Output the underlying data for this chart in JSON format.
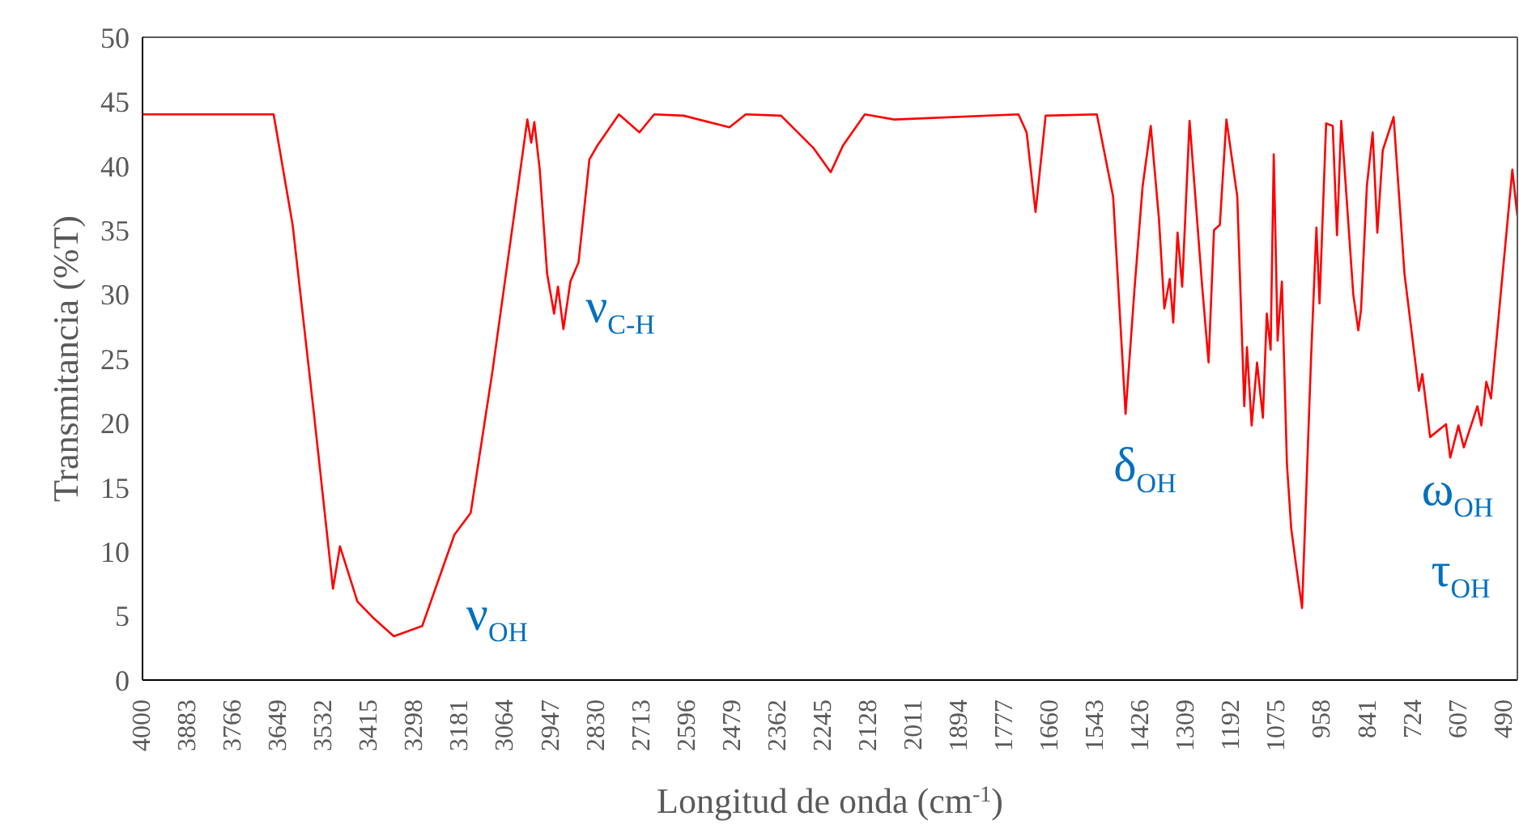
{
  "chart_data": {
    "type": "line",
    "xlabel": "Longitud de onda (cm$^{-1}$)",
    "ylabel": "Transmitancia (%T)",
    "x": [
      4000,
      3662,
      3613,
      3558,
      3509,
      3491,
      3446,
      3404,
      3352,
      3279,
      3196,
      3154,
      3098,
      3008,
      2998,
      2990,
      2976,
      2957,
      2939,
      2929,
      2915,
      2897,
      2876,
      2848,
      2827,
      2772,
      2719,
      2681,
      2605,
      2487,
      2445,
      2354,
      2271,
      2226,
      2194,
      2138,
      2062,
      1742,
      1721,
      1698,
      1672,
      1540,
      1498,
      1466,
      1443,
      1422,
      1401,
      1380,
      1366,
      1352,
      1343,
      1332,
      1320,
      1301,
      1269,
      1252,
      1238,
      1223,
      1206,
      1178,
      1160,
      1153,
      1141,
      1127,
      1112,
      1102,
      1092,
      1084,
      1074,
      1063,
      1050,
      1039,
      1025,
      1011,
      988,
      974,
      966,
      949,
      932,
      921,
      910,
      879,
      866,
      859,
      844,
      829,
      817,
      803,
      775,
      747,
      710,
      701,
      681,
      640,
      629,
      608,
      594,
      559,
      549,
      536,
      524,
      469,
      456
    ],
    "series": [
      {
        "color": "#ff0000",
        "values": [
          44.0,
          44.0,
          35.4,
          20.7,
          7.1,
          10.4,
          6.1,
          4.8,
          3.4,
          4.2,
          11.3,
          13.0,
          24.0,
          43.6,
          41.8,
          43.4,
          39.7,
          31.6,
          28.5,
          30.6,
          27.3,
          31.0,
          32.5,
          40.5,
          41.6,
          44.0,
          42.6,
          44.0,
          43.9,
          43.0,
          44.0,
          43.9,
          41.4,
          39.5,
          41.6,
          44.0,
          43.6,
          44.0,
          42.6,
          36.4,
          43.9,
          44.0,
          37.6,
          20.7,
          30.4,
          38.4,
          43.1,
          35.9,
          28.9,
          31.2,
          27.8,
          34.8,
          30.6,
          43.5,
          30.8,
          24.7,
          35.0,
          35.4,
          43.6,
          37.6,
          21.3,
          25.9,
          19.8,
          24.7,
          20.4,
          28.5,
          25.7,
          40.9,
          26.4,
          31.0,
          16.8,
          11.8,
          8.6,
          5.6,
          24.9,
          35.2,
          29.3,
          43.3,
          43.1,
          34.6,
          43.5,
          30.0,
          27.2,
          28.8,
          38.4,
          42.6,
          34.8,
          41.2,
          43.8,
          31.6,
          22.5,
          23.8,
          18.9,
          19.9,
          17.3,
          19.8,
          18.1,
          21.3,
          19.8,
          23.2,
          21.9,
          39.7,
          36.1
        ]
      }
    ],
    "xlim": [
      4000,
      456
    ],
    "xticks": [
      4000,
      3883,
      3766,
      3649,
      3532,
      3415,
      3298,
      3181,
      3064,
      2947,
      2830,
      2713,
      2596,
      2479,
      2362,
      2245,
      2128,
      2011,
      1894,
      1777,
      1660,
      1543,
      1426,
      1309,
      1192,
      1075,
      958,
      841,
      724,
      607,
      490
    ],
    "ylim": [
      0,
      50
    ],
    "yticks": [
      0,
      5,
      10,
      15,
      20,
      25,
      30,
      35,
      40,
      45,
      50
    ],
    "grid": false,
    "legend": false,
    "marker": "none",
    "line_style": "solid",
    "annotations": [
      "ν$_{OH}$",
      "ν$_{C-H}$",
      "δ$_{OH}$",
      "ω$_{OH}$",
      "τ$_{OH}$"
    ]
  }
}
